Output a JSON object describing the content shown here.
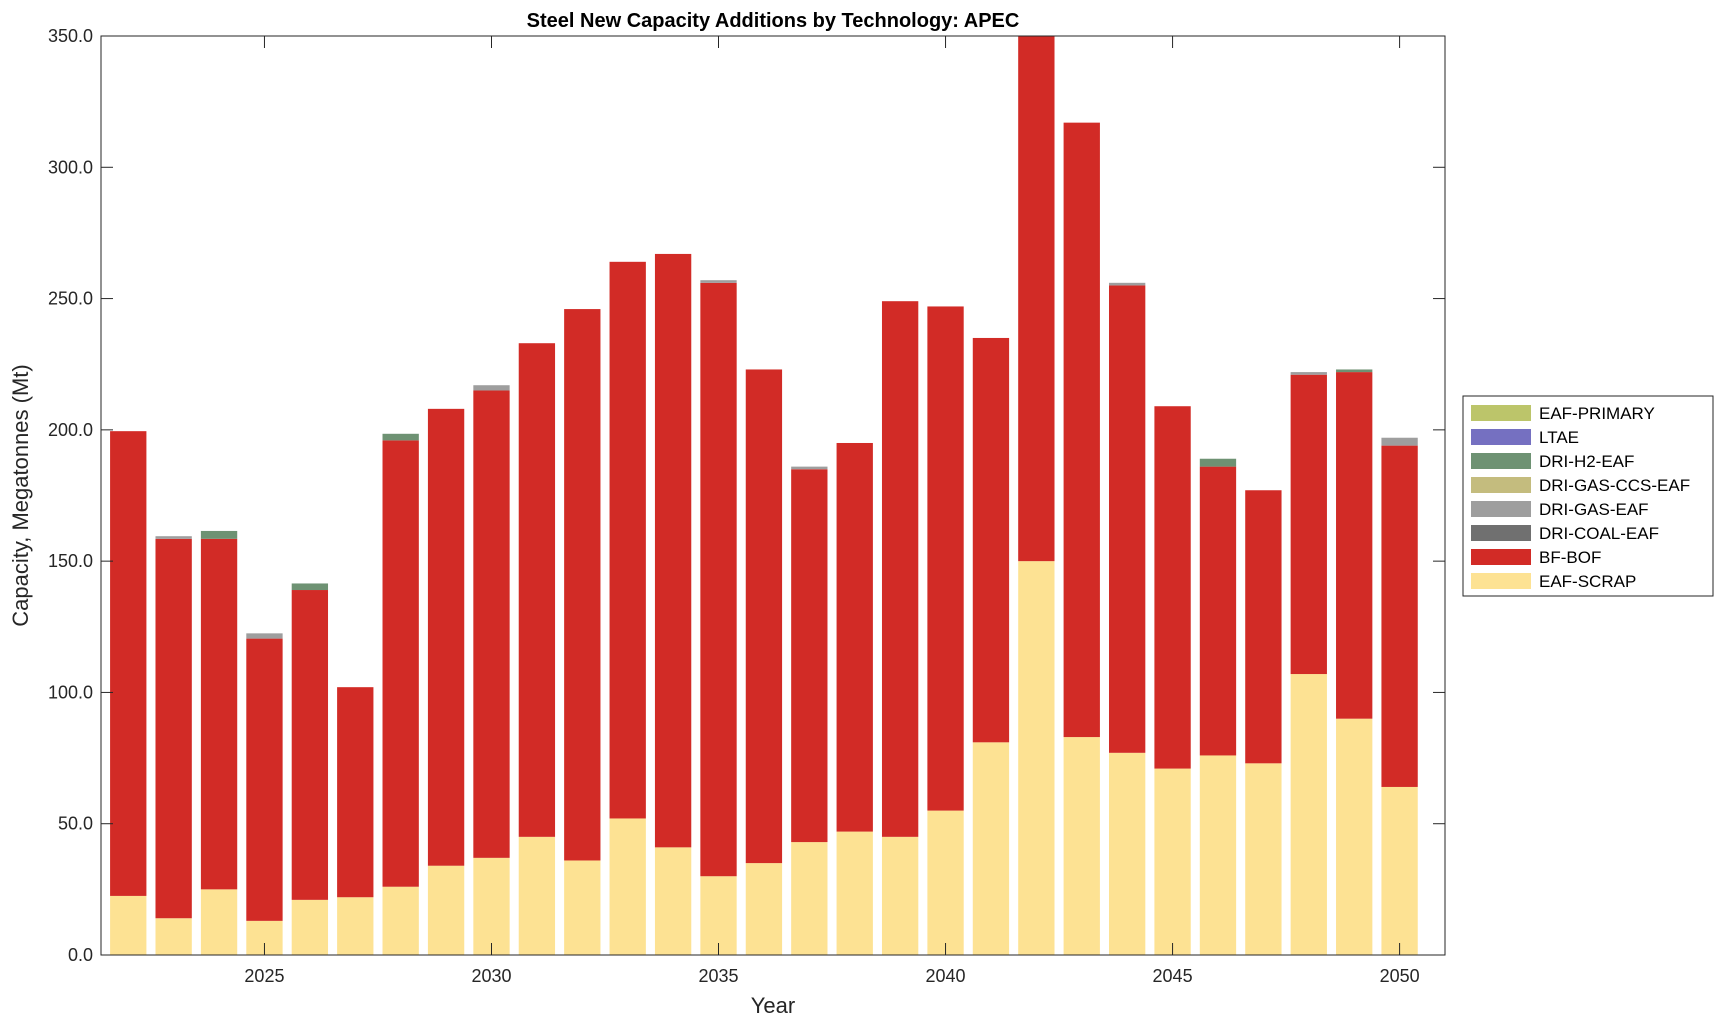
{
  "chart_data": {
    "type": "bar",
    "stacked": true,
    "title": "Steel New Capacity Additions by Technology: APEC",
    "xlabel": "Year",
    "ylabel": "Capacity, Megatonnes (Mt)",
    "ylim": [
      0,
      350
    ],
    "xlim": [
      2021.4,
      2051.0
    ],
    "y_ticks": [
      0,
      50,
      100,
      150,
      200,
      250,
      300,
      350
    ],
    "y_tick_labels": [
      "0.0",
      "50.0",
      "100.0",
      "150.0",
      "200.0",
      "250.0",
      "300.0",
      "350.0"
    ],
    "x_ticks": [
      2025,
      2030,
      2035,
      2040,
      2045,
      2050
    ],
    "x_tick_labels": [
      "2025",
      "2030",
      "2035",
      "2040",
      "2045",
      "2050"
    ],
    "grid": false,
    "legend_position": "right",
    "categories": [
      2022,
      2023,
      2024,
      2025,
      2026,
      2027,
      2028,
      2029,
      2030,
      2031,
      2032,
      2033,
      2034,
      2035,
      2036,
      2037,
      2038,
      2039,
      2040,
      2041,
      2042,
      2043,
      2044,
      2045,
      2046,
      2047,
      2048,
      2049,
      2050
    ],
    "series": [
      {
        "name": "EAF-SCRAP",
        "color": "#FDE293",
        "values": [
          22.5,
          14,
          25,
          13,
          21,
          22,
          26,
          34,
          37,
          45,
          36,
          52,
          41,
          30,
          35,
          43,
          47,
          45,
          55,
          81,
          150,
          83,
          77,
          71,
          76,
          73,
          107,
          90,
          64
        ]
      },
      {
        "name": "BF-BOF",
        "color": "#D22B26",
        "values": [
          177,
          144.5,
          133.5,
          107.5,
          118,
          80,
          170,
          174,
          178,
          188,
          210,
          212,
          226,
          226,
          188,
          142,
          148,
          204,
          192,
          154,
          200,
          234,
          178,
          138,
          110,
          104,
          114,
          132,
          130
        ]
      },
      {
        "name": "DRI-COAL-EAF",
        "color": "#707070",
        "values": [
          0,
          0,
          0,
          0,
          0,
          0,
          0,
          0,
          0,
          0,
          0,
          0,
          0,
          0,
          0,
          0,
          0,
          0,
          0,
          0,
          0,
          0,
          0,
          0,
          0,
          0,
          0,
          0,
          0
        ]
      },
      {
        "name": "DRI-GAS-EAF",
        "color": "#9E9E9E",
        "values": [
          0,
          1,
          0,
          2,
          0,
          0,
          0,
          0,
          2,
          0,
          0,
          0,
          0,
          1,
          0,
          1,
          0,
          0,
          0,
          0,
          0,
          0,
          1,
          0,
          0,
          0,
          1,
          0,
          3
        ]
      },
      {
        "name": "DRI-GAS-CCS-EAF",
        "color": "#C4BC7E",
        "values": [
          0,
          0,
          0,
          0,
          0,
          0,
          0,
          0,
          0,
          0,
          0,
          0,
          0,
          0,
          0,
          0,
          0,
          0,
          0,
          0,
          0,
          0,
          0,
          0,
          0,
          0,
          0,
          0,
          0
        ]
      },
      {
        "name": "DRI-H2-EAF",
        "color": "#6E9273",
        "values": [
          0,
          0,
          3,
          0,
          2.5,
          0,
          2.5,
          0,
          0,
          0,
          0,
          0,
          0,
          0,
          0,
          0,
          0,
          0,
          0,
          0,
          0,
          0,
          0,
          0,
          3,
          0,
          0,
          1,
          0
        ]
      },
      {
        "name": "LTAE",
        "color": "#7570C1",
        "values": [
          0,
          0,
          0,
          0,
          0,
          0,
          0,
          0,
          0,
          0,
          0,
          0,
          0,
          0,
          0,
          0,
          0,
          0,
          0,
          0,
          0,
          0,
          0,
          0,
          0,
          0,
          0,
          0,
          0
        ]
      },
      {
        "name": "EAF-PRIMARY",
        "color": "#BCC56A",
        "values": [
          0,
          0,
          0,
          0,
          0,
          0,
          0,
          0,
          0,
          0,
          0,
          0,
          0,
          0,
          0,
          0,
          0,
          0,
          0,
          0,
          0,
          0,
          0,
          0,
          0,
          0,
          0,
          0,
          0
        ]
      }
    ],
    "legend_order": [
      "EAF-PRIMARY",
      "LTAE",
      "DRI-H2-EAF",
      "DRI-GAS-CCS-EAF",
      "DRI-GAS-EAF",
      "DRI-COAL-EAF",
      "BF-BOF",
      "EAF-SCRAP"
    ]
  }
}
